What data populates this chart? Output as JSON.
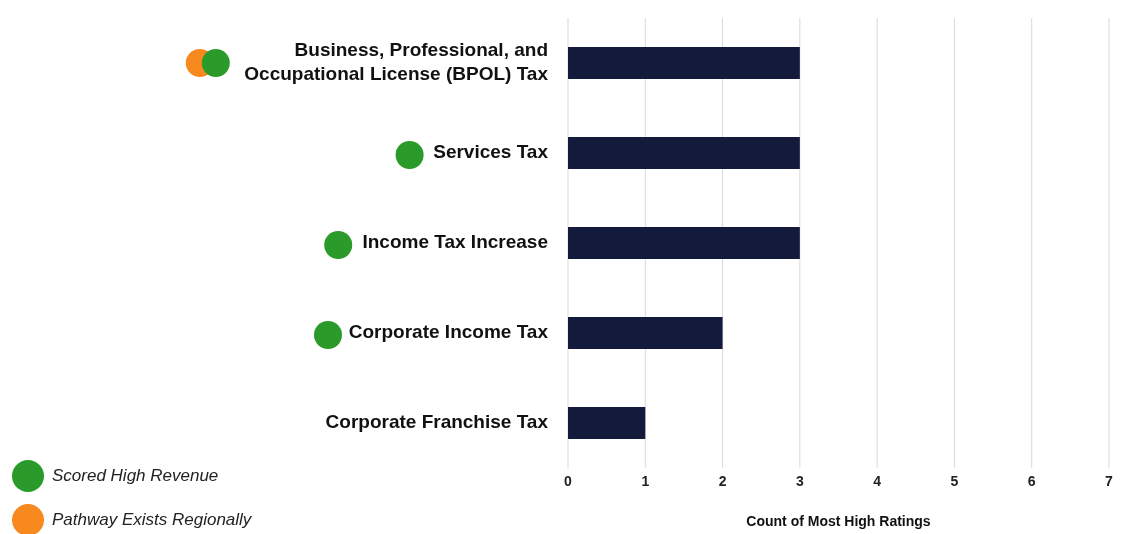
{
  "chart_data": {
    "type": "bar",
    "orientation": "horizontal",
    "categories": [
      "Business, Professional, and Occupational License (BPOL) Tax",
      "Services Tax",
      "Income Tax Increase",
      "Corporate Income Tax",
      "Corporate Franchise Tax"
    ],
    "values": [
      3,
      3,
      3,
      2,
      1
    ],
    "color": "#141a3c",
    "xlim": [
      0,
      7
    ],
    "xticks": [
      0,
      1,
      2,
      3,
      4,
      5,
      6,
      7
    ],
    "grid": "x",
    "legend": false,
    "xlabel": "Count of Most High Ratings",
    "annotations": [
      "Scored High Revenue",
      "Pathway Exists Regionally"
    ]
  }
}
